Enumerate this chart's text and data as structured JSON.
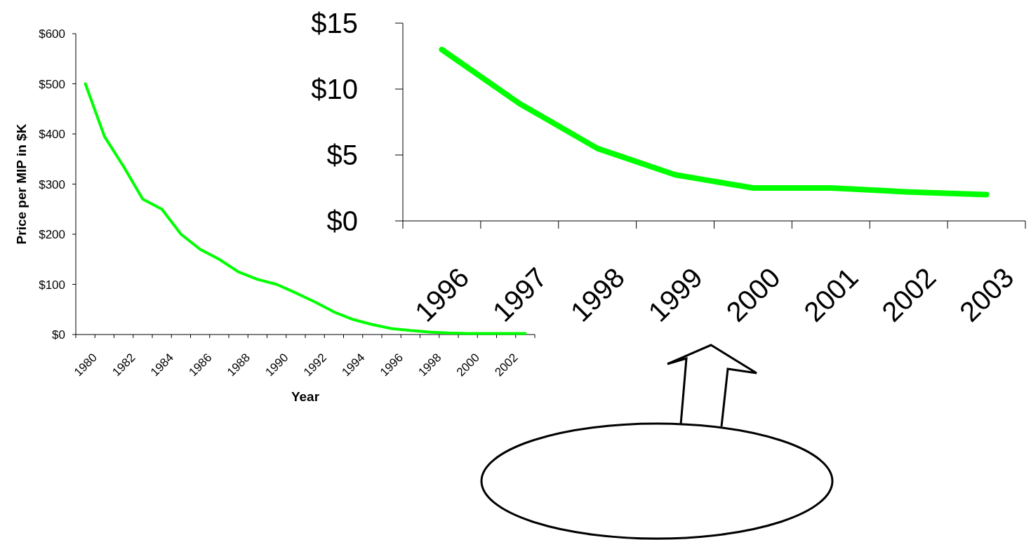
{
  "chart_data": [
    {
      "type": "line",
      "xlabel": "Year",
      "ylabel": "Price per MIP in $K",
      "categories": [
        "1980",
        null,
        "1982",
        null,
        "1984",
        null,
        "1986",
        null,
        "1988",
        null,
        "1990",
        null,
        "1992",
        null,
        "1994",
        null,
        "1996",
        null,
        "1998",
        null,
        "2000",
        null,
        "2002",
        null
      ],
      "values": [
        500,
        395,
        335,
        270,
        250,
        200,
        170,
        150,
        125,
        110,
        100,
        83,
        65,
        45,
        30,
        20,
        12,
        8,
        5,
        3,
        2,
        2,
        2,
        2
      ],
      "color": "#00ff00",
      "ylim": [
        0,
        600
      ],
      "yticks": [
        {
          "value": 0,
          "label": "$0"
        },
        {
          "value": 100,
          "label": "$100"
        },
        {
          "value": 200,
          "label": "$200"
        },
        {
          "value": 300,
          "label": "$300"
        },
        {
          "value": 400,
          "label": "$400"
        },
        {
          "value": 500,
          "label": "$500"
        },
        {
          "value": 600,
          "label": "$600"
        }
      ]
    },
    {
      "type": "line",
      "categories": [
        "1996",
        "1997",
        "1998",
        "1999",
        "2000",
        "2001",
        "2002",
        "2003"
      ],
      "values": [
        13,
        8.9,
        5.5,
        3.5,
        2.5,
        2.5,
        2.2,
        2.0
      ],
      "color": "#00ff00",
      "ylim": [
        0,
        15
      ],
      "yticks": [
        {
          "value": 0,
          "label": "$0"
        },
        {
          "value": 5,
          "label": "$5"
        },
        {
          "value": 10,
          "label": "$10"
        },
        {
          "value": 15,
          "label": "$15"
        }
      ]
    }
  ]
}
